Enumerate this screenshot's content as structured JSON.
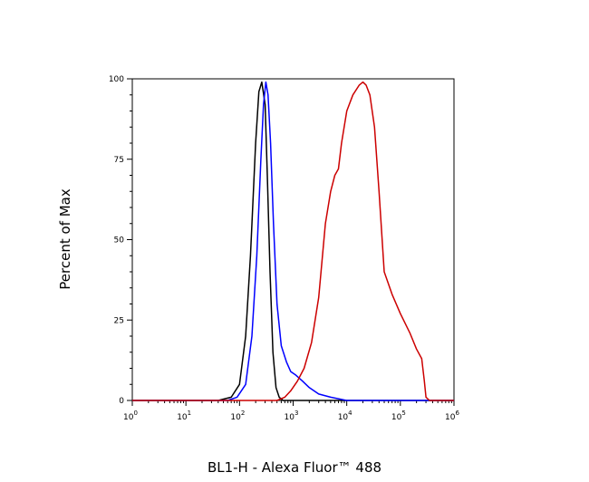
{
  "chart_data": {
    "type": "line",
    "title": "",
    "xlabel": "BL1-H - Alexa Fluor™ 488",
    "ylabel": "Percent of Max",
    "x_scale": "log",
    "xlim": [
      1,
      1000000
    ],
    "ylim": [
      0,
      100
    ],
    "x_ticks": [
      {
        "value": 1,
        "base": "10",
        "exp": "0"
      },
      {
        "value": 10,
        "base": "10",
        "exp": "1"
      },
      {
        "value": 100,
        "base": "10",
        "exp": "2"
      },
      {
        "value": 1000,
        "base": "10",
        "exp": "3"
      },
      {
        "value": 10000,
        "base": "10",
        "exp": "4"
      },
      {
        "value": 100000,
        "base": "10",
        "exp": "5"
      },
      {
        "value": 1000000,
        "base": "10",
        "exp": "6"
      }
    ],
    "y_ticks": [
      {
        "value": 0,
        "label": "0"
      },
      {
        "value": 25,
        "label": "25"
      },
      {
        "value": 50,
        "label": "50"
      },
      {
        "value": 75,
        "label": "75"
      },
      {
        "value": 100,
        "label": "100"
      }
    ],
    "grid": false,
    "legend": "none",
    "series": [
      {
        "color": "#000000",
        "x": [
          1,
          40,
          70,
          100,
          130,
          160,
          200,
          230,
          260,
          300,
          330,
          370,
          420,
          480,
          550,
          650,
          1000,
          1000000
        ],
        "y": [
          0,
          0,
          1,
          5,
          20,
          45,
          80,
          96,
          99,
          92,
          70,
          40,
          15,
          4,
          1,
          0,
          0,
          0
        ]
      },
      {
        "color": "#0000ff",
        "x": [
          1,
          60,
          90,
          130,
          170,
          210,
          250,
          280,
          310,
          340,
          380,
          430,
          500,
          600,
          750,
          900,
          1100,
          1500,
          2000,
          3000,
          5000,
          10000,
          1000000
        ],
        "y": [
          0,
          0,
          1,
          5,
          20,
          45,
          75,
          92,
          99,
          95,
          80,
          55,
          30,
          17,
          12,
          9,
          8,
          6,
          4,
          2,
          1,
          0,
          0
        ]
      },
      {
        "color": "#cc0000",
        "x": [
          1,
          300,
          500,
          700,
          900,
          1200,
          1600,
          2200,
          3000,
          4000,
          5000,
          6000,
          7000,
          8000,
          10000,
          13000,
          17000,
          20000,
          23000,
          27000,
          33000,
          40000,
          50000,
          70000,
          100000,
          150000,
          200000,
          250000,
          280000,
          300000,
          350000,
          1000000
        ],
        "y": [
          0,
          0,
          0,
          1,
          3,
          6,
          10,
          18,
          32,
          55,
          65,
          70,
          72,
          80,
          90,
          95,
          98,
          99,
          98,
          95,
          85,
          65,
          40,
          33,
          27,
          21,
          16,
          13,
          6,
          1,
          0,
          0
        ]
      }
    ]
  }
}
